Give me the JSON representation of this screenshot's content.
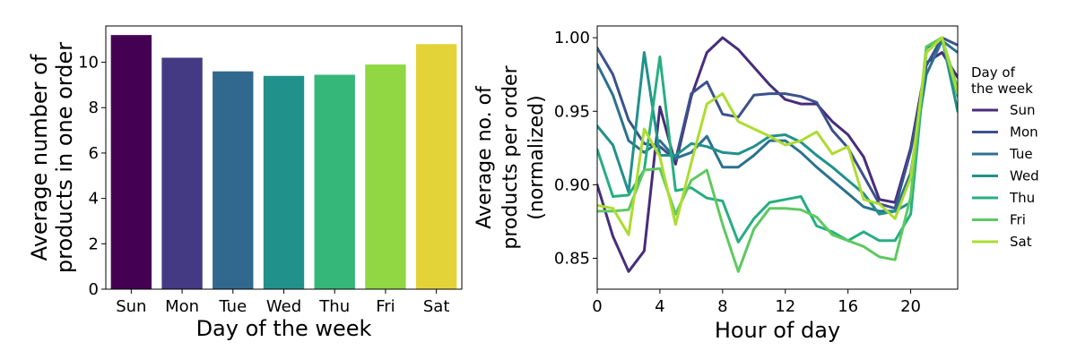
{
  "chart_data": [
    {
      "type": "bar",
      "categories": [
        "Sun",
        "Mon",
        "Tue",
        "Wed",
        "Thu",
        "Fri",
        "Sat"
      ],
      "values": [
        11.2,
        10.2,
        9.6,
        9.4,
        9.45,
        9.9,
        10.8
      ],
      "colors": [
        "#440154",
        "#443983",
        "#31688e",
        "#21918c",
        "#35b779",
        "#90d743",
        "#e3d339"
      ],
      "xlabel": "Day of the week",
      "ylabel_lines": [
        "Average number of",
        "products in one order"
      ],
      "ylim": [
        0,
        11.6
      ],
      "yticks": [
        0,
        2,
        4,
        6,
        8,
        10
      ],
      "yticklabels": [
        "0",
        "2",
        "4",
        "6",
        "8",
        "10"
      ],
      "grid": false
    },
    {
      "type": "line",
      "x": [
        0,
        1,
        2,
        3,
        4,
        5,
        6,
        7,
        8,
        9,
        10,
        11,
        12,
        13,
        14,
        15,
        16,
        17,
        18,
        19,
        20,
        21,
        22,
        23
      ],
      "series": [
        {
          "name": "Sun",
          "color": "#472d7b",
          "values": [
            0.9,
            0.865,
            0.841,
            0.855,
            0.953,
            0.914,
            0.96,
            0.99,
            1.0,
            0.992,
            0.98,
            0.968,
            0.958,
            0.955,
            0.955,
            0.943,
            0.934,
            0.919,
            0.89,
            0.888,
            0.925,
            0.983,
            0.99,
            0.973
          ]
        },
        {
          "name": "Mon",
          "color": "#3b528b",
          "values": [
            0.993,
            0.975,
            0.944,
            0.928,
            0.926,
            0.917,
            0.962,
            0.97,
            0.948,
            0.946,
            0.961,
            0.962,
            0.962,
            0.96,
            0.956,
            0.937,
            0.925,
            0.906,
            0.887,
            0.884,
            0.923,
            0.981,
            1.0,
            0.995
          ]
        },
        {
          "name": "Tue",
          "color": "#2c728e",
          "values": [
            0.982,
            0.961,
            0.93,
            0.922,
            0.93,
            0.918,
            0.922,
            0.933,
            0.912,
            0.912,
            0.92,
            0.93,
            0.93,
            0.922,
            0.912,
            0.903,
            0.894,
            0.885,
            0.882,
            0.882,
            0.908,
            0.975,
            0.998,
            0.99
          ]
        },
        {
          "name": "Wed",
          "color": "#21918c",
          "values": [
            0.94,
            0.927,
            0.895,
            0.99,
            0.92,
            0.92,
            0.928,
            0.926,
            0.922,
            0.921,
            0.926,
            0.933,
            0.934,
            0.929,
            0.92,
            0.912,
            0.903,
            0.894,
            0.88,
            0.882,
            0.888,
            0.993,
            1.0,
            0.95
          ]
        },
        {
          "name": "Thu",
          "color": "#28ae80",
          "values": [
            0.924,
            0.892,
            0.893,
            0.91,
            0.987,
            0.896,
            0.898,
            0.891,
            0.889,
            0.861,
            0.877,
            0.888,
            0.89,
            0.892,
            0.872,
            0.868,
            0.862,
            0.868,
            0.862,
            0.862,
            0.88,
            0.99,
            1.0,
            0.96
          ]
        },
        {
          "name": "Fri",
          "color": "#5ec962",
          "values": [
            0.882,
            0.882,
            0.883,
            0.91,
            0.911,
            0.88,
            0.903,
            0.91,
            0.873,
            0.841,
            0.87,
            0.884,
            0.884,
            0.883,
            0.878,
            0.866,
            0.862,
            0.858,
            0.851,
            0.849,
            0.892,
            0.994,
            1.0,
            0.965
          ]
        },
        {
          "name": "Sat",
          "color": "#addc30",
          "values": [
            0.886,
            0.884,
            0.866,
            0.938,
            0.919,
            0.873,
            0.915,
            0.955,
            0.962,
            0.943,
            0.938,
            0.933,
            0.927,
            0.93,
            0.936,
            0.921,
            0.926,
            0.89,
            0.887,
            0.877,
            0.905,
            0.99,
            1.0,
            0.962
          ]
        }
      ],
      "xlabel": "Hour of day",
      "ylabel_lines": [
        "Average no. of",
        "products per order",
        "(normalized)"
      ],
      "xlim": [
        0,
        23
      ],
      "ylim": [
        0.829,
        1.008
      ],
      "xticks": [
        0,
        4,
        8,
        12,
        16,
        20
      ],
      "xticklabels": [
        "0",
        "4",
        "8",
        "12",
        "16",
        "20"
      ],
      "yticks": [
        0.85,
        0.9,
        0.95,
        1.0
      ],
      "yticklabels": [
        "0.85",
        "0.90",
        "0.95",
        "1.00"
      ],
      "legend_title_lines": [
        "Day of",
        "the week"
      ],
      "legend_placement": "outside-right",
      "grid": false
    }
  ]
}
